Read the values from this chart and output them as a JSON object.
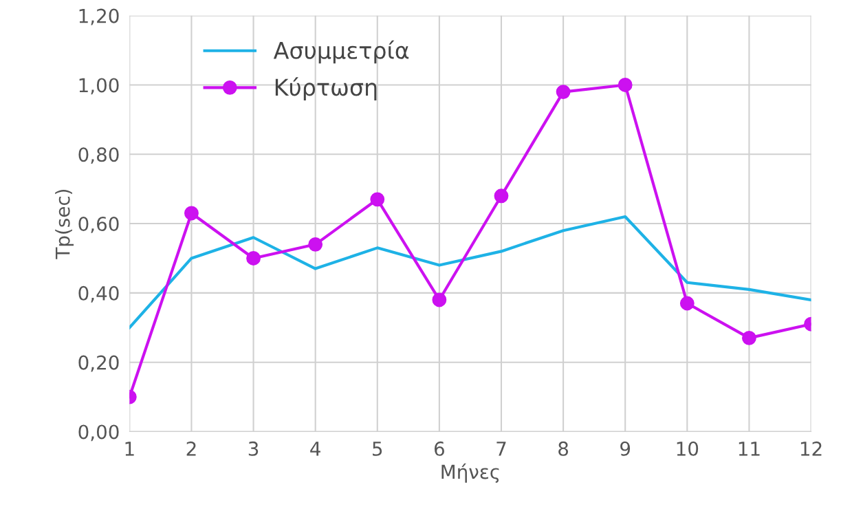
{
  "chart_data": {
    "type": "line",
    "xlabel": "Μήνες",
    "ylabel": "Tp(sec)",
    "categories": [
      "1",
      "2",
      "3",
      "4",
      "5",
      "6",
      "7",
      "8",
      "9",
      "10",
      "11",
      "12"
    ],
    "series": [
      {
        "name": "Ασυμμετρία",
        "color": "#1eb2e6",
        "marker": "none",
        "values": [
          0.3,
          0.5,
          0.56,
          0.47,
          0.53,
          0.48,
          0.52,
          0.58,
          0.62,
          0.43,
          0.41,
          0.38
        ]
      },
      {
        "name": "Κύρτωση",
        "color": "#cc11f0",
        "marker": "circle",
        "values": [
          0.1,
          0.63,
          0.5,
          0.54,
          0.67,
          0.38,
          0.68,
          0.98,
          1.0,
          0.37,
          0.27,
          0.31
        ]
      }
    ],
    "ylim": [
      0,
      1.2
    ],
    "yticks": [
      {
        "value": 0,
        "label": "0,00"
      },
      {
        "value": 0.2,
        "label": "0,20"
      },
      {
        "value": 0.4,
        "label": "0,40"
      },
      {
        "value": 0.6,
        "label": "0,60"
      },
      {
        "value": 0.8,
        "label": "0,80"
      },
      {
        "value": 1.0,
        "label": "1,00"
      },
      {
        "value": 1.2,
        "label": "1,20"
      }
    ],
    "grid": true,
    "legend": "top left"
  }
}
